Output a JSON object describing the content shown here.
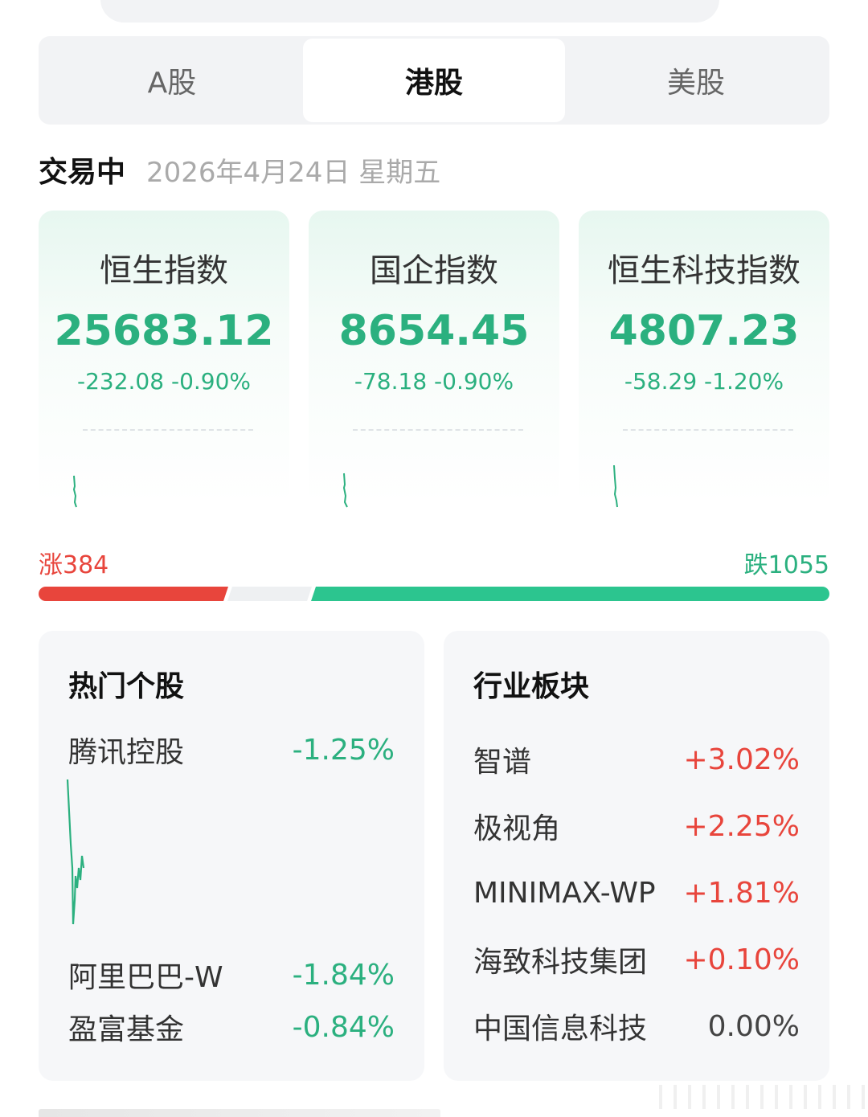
{
  "tabs": [
    {
      "label": "A股",
      "active": false
    },
    {
      "label": "港股",
      "active": true
    },
    {
      "label": "美股",
      "active": false
    }
  ],
  "status": {
    "label": "交易中",
    "date": "2026年4月24日 星期五"
  },
  "indices": [
    {
      "name": "恒生指数",
      "value": "25683.12",
      "change": "-232.08 -0.90%"
    },
    {
      "name": "国企指数",
      "value": "8654.45",
      "change": "-78.18 -0.90%"
    },
    {
      "name": "恒生科技指数",
      "value": "4807.23",
      "change": "-58.29 -1.20%"
    }
  ],
  "breadth": {
    "up_label": "涨384",
    "down_label": "跌1055",
    "up_count": 384,
    "down_count": 1055
  },
  "hot_stocks": {
    "title": "热门个股",
    "items": [
      {
        "name": "腾讯控股",
        "pct": "-1.25%"
      },
      {
        "name": "阿里巴巴-W",
        "pct": "-1.84%"
      },
      {
        "name": "盈富基金",
        "pct": "-0.84%"
      }
    ]
  },
  "sectors": {
    "title": "行业板块",
    "items": [
      {
        "name": "智谱",
        "pct": "+3.02%",
        "dir": "up"
      },
      {
        "name": "极视角",
        "pct": "+2.25%",
        "dir": "up"
      },
      {
        "name": "MINIMAX-WP",
        "pct": "+1.81%",
        "dir": "up"
      },
      {
        "name": "海致科技集团",
        "pct": "+0.10%",
        "dir": "up"
      },
      {
        "name": "中国信息科技",
        "pct": "0.00%",
        "dir": "flat"
      }
    ]
  },
  "colors": {
    "up": "#e8453c",
    "down": "#2bb07f",
    "neutral": "#444444"
  }
}
